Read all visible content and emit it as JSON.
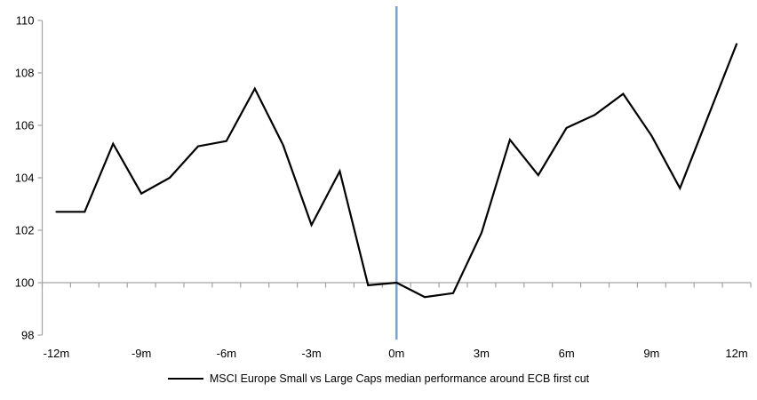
{
  "chart_data": {
    "type": "line",
    "title": "",
    "series_name": "MSCI Europe Small vs Large Caps median performance around ECB first cut",
    "x_months": [
      -12,
      -11,
      -10,
      -9,
      -8,
      -7,
      -6,
      -5,
      -4,
      -3,
      -2,
      -1,
      0,
      1,
      2,
      3,
      4,
      5,
      6,
      7,
      8,
      9,
      10,
      11,
      12
    ],
    "values": [
      102.7,
      102.7,
      105.3,
      103.4,
      104.0,
      105.2,
      105.4,
      107.4,
      105.25,
      102.2,
      104.25,
      99.9,
      100.0,
      99.45,
      99.6,
      101.9,
      105.45,
      104.1,
      105.9,
      106.4,
      107.2,
      105.6,
      103.6,
      106.35,
      109.1
    ],
    "ylim": [
      98,
      110
    ],
    "y_ticks": [
      98,
      100,
      102,
      104,
      106,
      108,
      110
    ],
    "x_ticks": [
      {
        "month": -12,
        "label": "-12m"
      },
      {
        "month": -9,
        "label": "-9m"
      },
      {
        "month": -6,
        "label": "-6m"
      },
      {
        "month": -3,
        "label": "-3m"
      },
      {
        "month": 0,
        "label": "0m"
      },
      {
        "month": 3,
        "label": "3m"
      },
      {
        "month": 6,
        "label": "6m"
      },
      {
        "month": 9,
        "label": "9m"
      },
      {
        "month": 12,
        "label": "12m"
      }
    ],
    "baseline_value": 100,
    "event_line_month": 0,
    "grid": "baseline-only",
    "legend_position": "bottom-center",
    "colors": {
      "series": "#000000",
      "event_line": "#7CA4CE",
      "axis": "#A3A3A3",
      "text": "#000000"
    }
  }
}
